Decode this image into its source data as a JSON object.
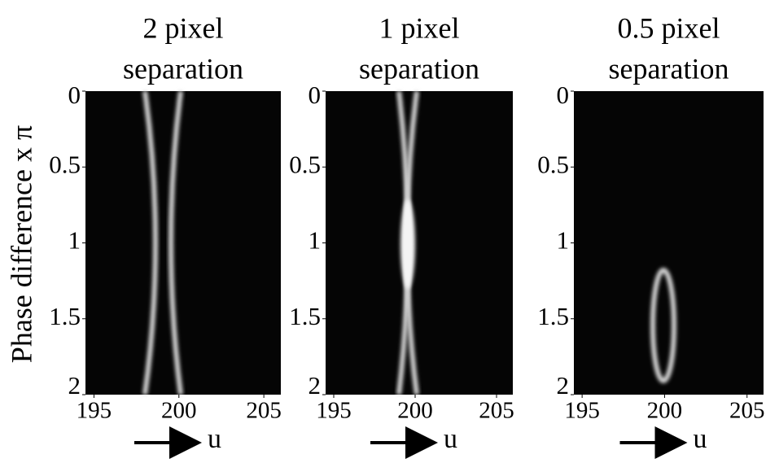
{
  "chart_data": [
    {
      "type": "heatmap",
      "title": [
        "2 pixel",
        "separation"
      ],
      "ylabel": "Phase difference x π",
      "xlabel": "u",
      "xlim": [
        194.5,
        206
      ],
      "xticks": [
        195,
        200,
        205
      ],
      "ylim": [
        0,
        2
      ],
      "yticks": [
        0,
        0.5,
        1,
        1.5,
        2
      ]
    },
    {
      "type": "heatmap",
      "title": [
        "1 pixel",
        "separation"
      ],
      "xlabel": "u",
      "xlim": [
        194.5,
        206
      ],
      "xticks": [
        195,
        200,
        205
      ],
      "ylim": [
        0,
        2
      ],
      "yticks": [
        0,
        0.5,
        1,
        1.5,
        2
      ]
    },
    {
      "type": "heatmap",
      "title": [
        "0.5 pixel",
        "separation"
      ],
      "xlabel": "u",
      "xlim": [
        194.5,
        206
      ],
      "xticks": [
        195,
        200,
        205
      ],
      "ylim": [
        0,
        2
      ],
      "yticks": [
        0,
        0.5,
        1,
        1.5,
        2
      ]
    }
  ]
}
